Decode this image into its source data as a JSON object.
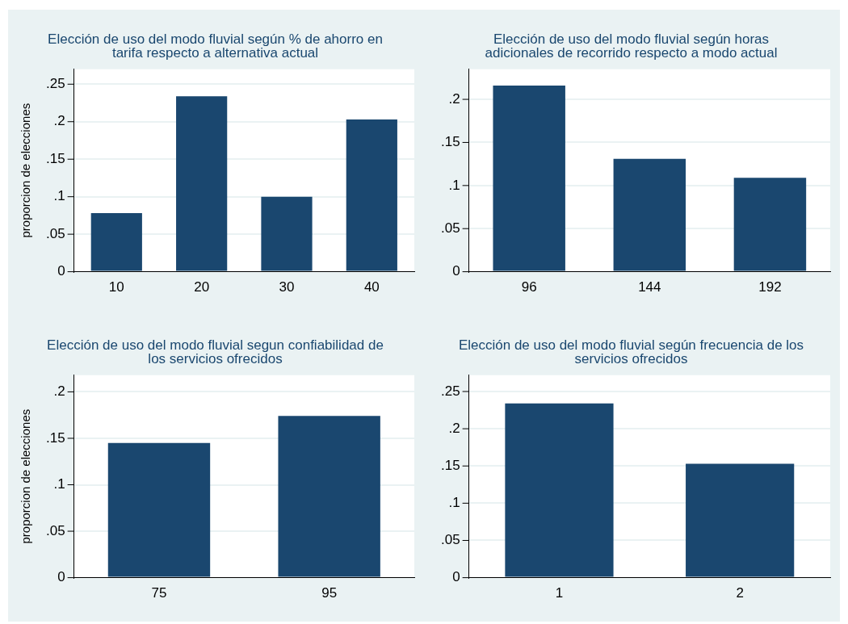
{
  "chart_data": [
    {
      "type": "bar",
      "title": "Elección de uso del modo fluvial según % de ahorro en tarifa respecto a alternativa actual",
      "ylabel": "proporcion de elecciones",
      "categories": [
        "10",
        "20",
        "30",
        "40"
      ],
      "values": [
        0.078,
        0.234,
        0.1,
        0.203
      ],
      "color": "#1a476f",
      "ylim": [
        0,
        0.27
      ],
      "yticks": [
        {
          "value": 0,
          "label": "0"
        },
        {
          "value": 0.05,
          "label": ".05"
        },
        {
          "value": 0.1,
          "label": ".1"
        },
        {
          "value": 0.15,
          "label": ".15"
        },
        {
          "value": 0.2,
          "label": ".2"
        },
        {
          "value": 0.25,
          "label": ".25"
        }
      ],
      "grid": "y",
      "legend": false
    },
    {
      "type": "bar",
      "title": "Elección de uso del modo fluvial según horas adicionales de recorrido respecto a modo actual",
      "categories": [
        "96",
        "144",
        "192"
      ],
      "values": [
        0.216,
        0.131,
        0.109
      ],
      "color": "#1a476f",
      "ylim": [
        0,
        0.235
      ],
      "yticks": [
        {
          "value": 0,
          "label": "0"
        },
        {
          "value": 0.05,
          "label": ".05"
        },
        {
          "value": 0.1,
          "label": ".1"
        },
        {
          "value": 0.15,
          "label": ".15"
        },
        {
          "value": 0.2,
          "label": ".2"
        }
      ],
      "grid": "y",
      "legend": false
    },
    {
      "type": "bar",
      "title": "Elección de uso del modo fluvial segun confiabilidad de los servicios ofrecidos",
      "ylabel": "proporcion de elecciones",
      "categories": [
        "75",
        "95"
      ],
      "values": [
        0.145,
        0.174
      ],
      "color": "#1a476f",
      "ylim": [
        0,
        0.218
      ],
      "yticks": [
        {
          "value": 0,
          "label": "0"
        },
        {
          "value": 0.05,
          "label": ".05"
        },
        {
          "value": 0.1,
          "label": ".1"
        },
        {
          "value": 0.15,
          "label": ".15"
        },
        {
          "value": 0.2,
          "label": ".2"
        }
      ],
      "grid": "y",
      "legend": false
    },
    {
      "type": "bar",
      "title": "Elección de uso del modo fluvial según frecuencia de los servicios ofrecidos",
      "categories": [
        "1",
        "2"
      ],
      "values": [
        0.234,
        0.153
      ],
      "color": "#1a476f",
      "ylim": [
        0,
        0.272
      ],
      "yticks": [
        {
          "value": 0,
          "label": "0"
        },
        {
          "value": 0.05,
          "label": ".05"
        },
        {
          "value": 0.1,
          "label": ".1"
        },
        {
          "value": 0.15,
          "label": ".15"
        },
        {
          "value": 0.2,
          "label": ".2"
        },
        {
          "value": 0.25,
          "label": ".25"
        }
      ],
      "grid": "y",
      "legend": false
    }
  ]
}
